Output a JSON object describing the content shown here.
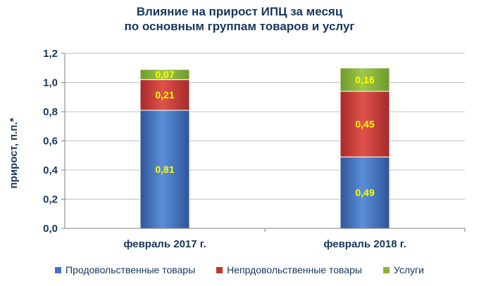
{
  "chart_data": {
    "type": "bar",
    "stacked": true,
    "title": "Влияние на прирост ИПЦ за месяц",
    "subtitle": "по основным группам товаров и услуг",
    "ylabel": "прирост, п.п.*",
    "xlabel": "",
    "ylim": [
      0,
      1.2
    ],
    "yticks": [
      "0,0",
      "0,2",
      "0,4",
      "0,6",
      "0,8",
      "1,0",
      "1,2"
    ],
    "categories": [
      "февраль 2017 г.",
      "февраль 2018 г."
    ],
    "grid": true,
    "legend_position": "bottom",
    "series": [
      {
        "name": "Продовольственные товары",
        "color": "#4472C4",
        "values": [
          0.81,
          0.49
        ],
        "labels": [
          "0,81",
          "0,49"
        ]
      },
      {
        "name": "Непрдовольственные товары",
        "color": "#C0392B",
        "values": [
          0.21,
          0.45
        ],
        "labels": [
          "0,21",
          "0,45"
        ]
      },
      {
        "name": "Услуги",
        "color": "#8DB33A",
        "values": [
          0.07,
          0.16
        ],
        "labels": [
          "0,07",
          "0,16"
        ]
      }
    ]
  }
}
